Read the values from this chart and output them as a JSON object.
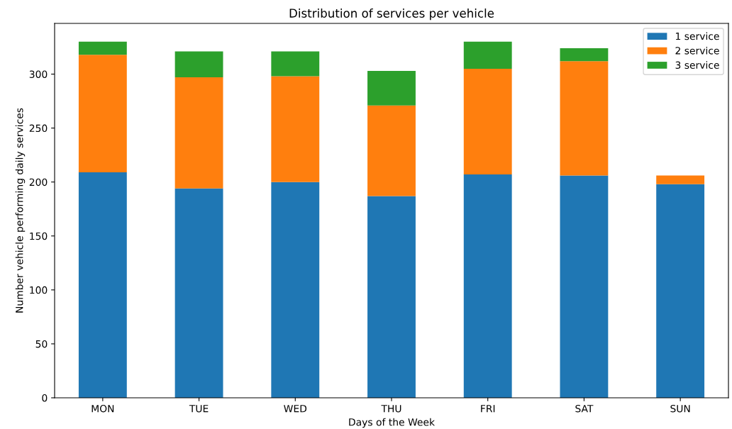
{
  "chart_data": {
    "type": "bar",
    "title": "Distribution of services per vehicle",
    "xlabel": "Days of the Week",
    "ylabel": "Number vehicle performing daily services",
    "categories": [
      "MON",
      "TUE",
      "WED",
      "THU",
      "FRI",
      "SAT",
      "SUN"
    ],
    "stacked": true,
    "series": [
      {
        "name": "1 service",
        "color": "#1f77b4",
        "values": [
          209,
          194,
          200,
          187,
          207,
          206,
          198
        ]
      },
      {
        "name": "2 service",
        "color": "#ff7f0e",
        "values": [
          109,
          103,
          98,
          84,
          98,
          106,
          8
        ]
      },
      {
        "name": "3 service",
        "color": "#2ca02c",
        "values": [
          12,
          24,
          23,
          32,
          25,
          12,
          0
        ]
      }
    ],
    "ylim": [
      0,
      347
    ],
    "yticks": [
      0,
      50,
      100,
      150,
      200,
      250,
      300
    ],
    "grid": false,
    "legend": "top right"
  }
}
